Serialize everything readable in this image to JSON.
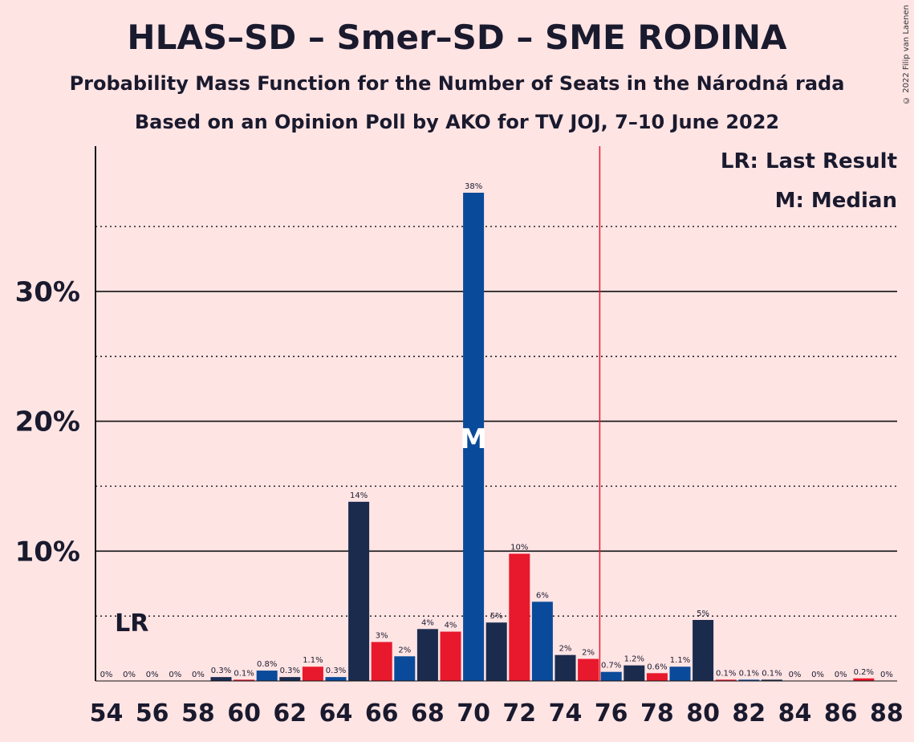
{
  "title": "HLAS–SD – Smer–SD – SME RODINA",
  "subtitle1": "Probability Mass Function for the Number of Seats in the Národná rada",
  "subtitle2": "Based on an Opinion Poll by AKO for TV JOJ, 7–10 June 2022",
  "credit": "© 2022 Filip van Laenen",
  "legend": {
    "lr": "LR: Last Result",
    "m": "M: Median"
  },
  "markers": {
    "lr_label": "LR",
    "median_label": "M"
  },
  "colors": {
    "red": "#E8192C",
    "blue": "#0A4A9A",
    "navy": "#1A2B4E",
    "background": "#FFE4E4"
  },
  "chart_data": {
    "type": "bar",
    "x": [
      54,
      55,
      56,
      57,
      58,
      59,
      60,
      61,
      62,
      63,
      64,
      65,
      66,
      67,
      68,
      69,
      70,
      71,
      72,
      73,
      74,
      75,
      76,
      77,
      78,
      79,
      80,
      81,
      82,
      83,
      84,
      85,
      86,
      87,
      88
    ],
    "values": [
      0,
      0,
      0,
      0,
      0,
      0.3,
      0.1,
      0.8,
      0.3,
      1.1,
      0.3,
      13.8,
      3.0,
      1.9,
      4.0,
      3.8,
      37.6,
      4.5,
      9.8,
      6.1,
      2.0,
      1.7,
      0.7,
      1.2,
      0.6,
      1.1,
      4.7,
      0.1,
      0.1,
      0.1,
      0,
      0,
      0,
      0.2,
      0
    ],
    "value_labels": [
      "0%",
      "0%",
      "0%",
      "0%",
      "0%",
      "0.3%",
      "0.1%",
      "0.8%",
      "0.3%",
      "1.1%",
      "0.3%",
      "14%",
      "3%",
      "2%",
      "4%",
      "4%",
      "38%",
      "5%",
      "10%",
      "6%",
      "2%",
      "2%",
      "0.7%",
      "1.2%",
      "0.6%",
      "1.1%",
      "5%",
      "0.1%",
      "0.1%",
      "0.1%",
      "0%",
      "0%",
      "0%",
      "0.2%",
      "0%"
    ],
    "bar_colors": [
      "red",
      "blue",
      "navy",
      "red",
      "blue",
      "navy",
      "red",
      "blue",
      "navy",
      "red",
      "blue",
      "navy",
      "red",
      "blue",
      "navy",
      "red",
      "blue",
      "navy",
      "red",
      "blue",
      "navy",
      "red",
      "blue",
      "navy",
      "red",
      "blue",
      "navy",
      "red",
      "blue",
      "navy",
      "red",
      "blue",
      "navy",
      "red",
      "blue"
    ],
    "x_tick_labels": [
      "54",
      "56",
      "58",
      "60",
      "62",
      "64",
      "66",
      "68",
      "70",
      "72",
      "74",
      "76",
      "78",
      "80",
      "82",
      "84",
      "86",
      "88"
    ],
    "y_tick_labels": [
      "10%",
      "20%",
      "30%"
    ],
    "y_ticks": [
      10,
      20,
      30
    ],
    "ylim": [
      0,
      41
    ],
    "majority_line_x": 75.5,
    "last_result_x": 55,
    "median_x": 70
  }
}
